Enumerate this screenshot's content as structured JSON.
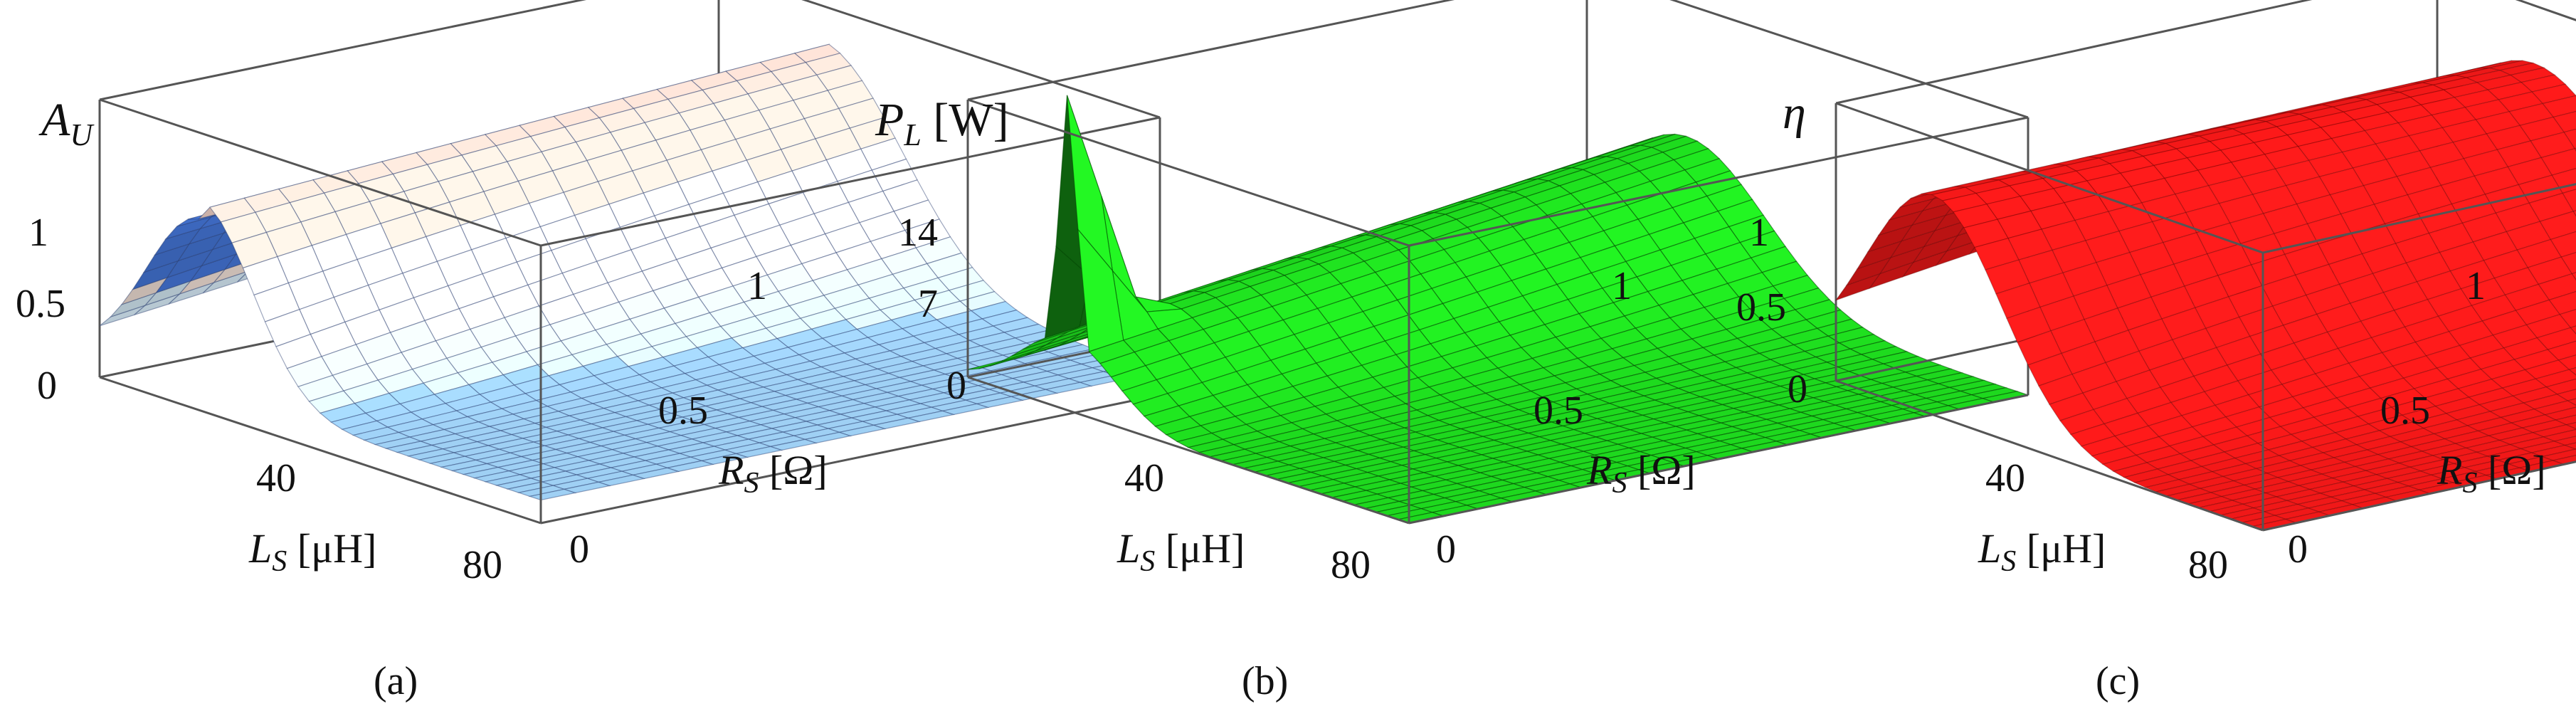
{
  "chart_data": [
    {
      "type": "surface3d",
      "panel": "(a)",
      "z_label": "A_U",
      "x_label": "L_S [μH]",
      "y_label": "R_S [Ω]",
      "x_ticks": [
        "40",
        "80"
      ],
      "y_ticks": [
        "0",
        "0.5",
        "1"
      ],
      "z_ticks": [
        "0",
        "0.5",
        "1"
      ],
      "xlim": [
        10,
        85
      ],
      "ylim": [
        0,
        1.1
      ],
      "zlim": [
        0,
        1.2
      ],
      "colormap": [
        "#3f7fe0",
        "#9fcff2",
        "#fbe7da",
        "#e74a6a"
      ],
      "surface": {
        "baseline": 0.1,
        "peak_x": 27,
        "peak_height": 0.95,
        "peak_width": 9,
        "valley_height": 0.12
      }
    },
    {
      "type": "surface3d",
      "panel": "(b)",
      "z_label": "P_L [W]",
      "x_label": "L_S [μH]",
      "y_label": "R_S [Ω]",
      "x_ticks": [
        "40",
        "80"
      ],
      "y_ticks": [
        "0",
        "0.5",
        "1"
      ],
      "z_ticks": [
        "0",
        "7",
        "14"
      ],
      "xlim": [
        10,
        85
      ],
      "ylim": [
        0,
        1.1
      ],
      "zlim": [
        0,
        16
      ],
      "color": "#1ed81e",
      "surface": {
        "baseline": 0.0,
        "peak_x": 27,
        "peak_height": 7,
        "peak_width": 8,
        "spike_height": 14
      }
    },
    {
      "type": "surface3d",
      "panel": "(c)",
      "z_label": "η",
      "x_label": "L_S [μH]",
      "y_label": "R_S [Ω]",
      "x_ticks": [
        "40",
        "80"
      ],
      "y_ticks": [
        "0",
        "0.5",
        "1"
      ],
      "z_ticks": [
        "0",
        "0.5",
        "1"
      ],
      "xlim": [
        10,
        85
      ],
      "ylim": [
        0,
        1.1
      ],
      "zlim": [
        0,
        1.2
      ],
      "color": "#f01818",
      "surface": {
        "baseline": 0.0,
        "peak_x": 27,
        "peak_height": 0.95,
        "peak_width": 12
      }
    }
  ],
  "captions": [
    "(a)",
    "(b)",
    "(c)"
  ]
}
